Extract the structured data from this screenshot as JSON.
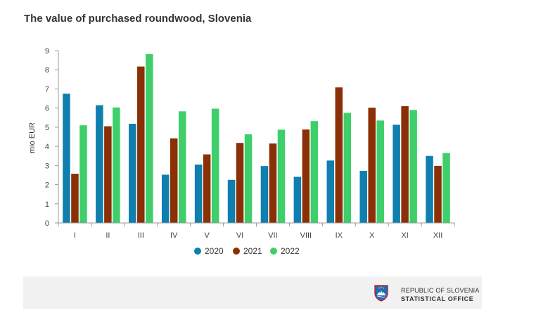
{
  "title": "The value of purchased roundwood, Slovenia",
  "footer": {
    "org_line1": "REPUBLIC OF SLOVENIA",
    "org_line2": "STATISTICAL OFFICE",
    "logo_icon": "slovenia-coat-of-arms-icon"
  },
  "chart_data": {
    "type": "bar",
    "title": "The value of purchased roundwood, Slovenia",
    "xlabel": "",
    "ylabel": "mio EUR",
    "ylim": [
      0,
      9
    ],
    "yticks": [
      "0",
      "1",
      "2",
      "3",
      "4",
      "5",
      "6",
      "7",
      "8",
      "9"
    ],
    "grid": false,
    "legend": "bottom",
    "categories": [
      "I",
      "II",
      "III",
      "IV",
      "V",
      "VI",
      "VII",
      "VIII",
      "IX",
      "X",
      "XI",
      "XII"
    ],
    "series": [
      {
        "name": "2020",
        "color": "#0e7fae",
        "values": [
          6.75,
          6.15,
          5.18,
          2.52,
          3.05,
          2.25,
          2.97,
          2.41,
          3.26,
          2.72,
          5.13,
          3.5
        ]
      },
      {
        "name": "2021",
        "color": "#8b3006",
        "values": [
          2.57,
          5.05,
          8.17,
          4.42,
          3.58,
          4.18,
          4.15,
          4.88,
          7.08,
          6.02,
          6.1,
          2.98
        ]
      },
      {
        "name": "2022",
        "color": "#3ecf6a",
        "values": [
          5.1,
          6.03,
          8.82,
          5.83,
          5.97,
          4.63,
          4.87,
          5.32,
          5.75,
          5.35,
          5.9,
          3.65
        ]
      }
    ]
  }
}
